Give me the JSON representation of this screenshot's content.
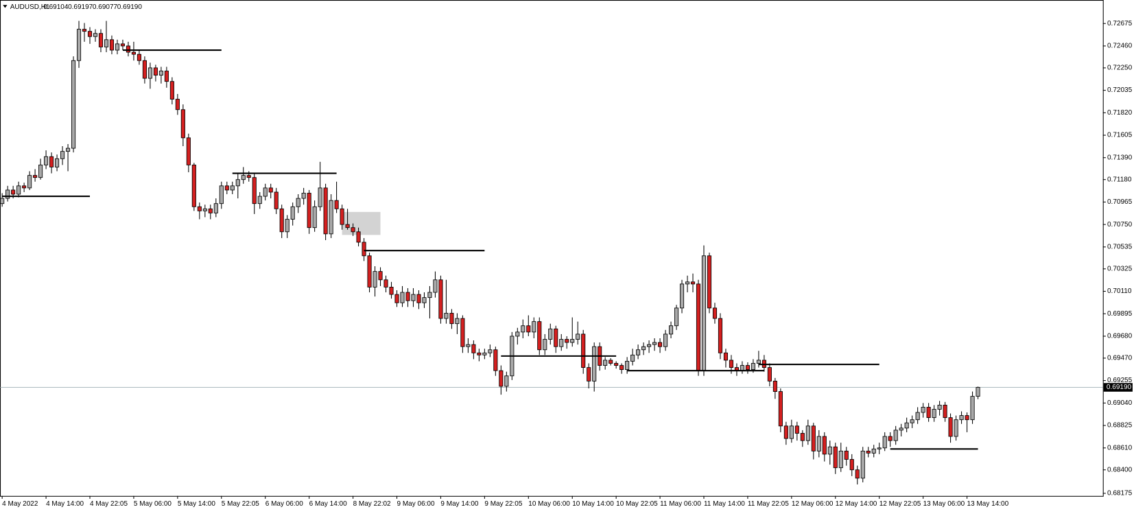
{
  "chart_data": {
    "type": "candlestick",
    "symbol": "AUDUSD,H1",
    "last_bar_labels": [
      "0.69104",
      "0.69197",
      "0.69077",
      "0.69190"
    ],
    "current_price": {
      "value": 0.6919,
      "label": "0.69190"
    },
    "up_color": "#a9a9a9",
    "down_color": "#d42020",
    "ylim": [
      0.6815,
      0.729
    ],
    "yticks": [
      0.72675,
      {
        "value": 0.7246,
        "label": "0.72460"
      },
      {
        "value": 0.7225,
        "label": "0.72250"
      },
      0.72035,
      {
        "value": 0.7182,
        "label": "0.71820"
      },
      0.71605,
      {
        "value": 0.7139,
        "label": "0.71390"
      },
      {
        "value": 0.7118,
        "label": "0.71180"
      },
      0.70965,
      {
        "value": 0.7075,
        "label": "0.70750"
      },
      0.70535,
      0.70325,
      {
        "value": 0.7011,
        "label": "0.70110"
      },
      0.69895,
      {
        "value": 0.6968,
        "label": "0.69680"
      },
      {
        "value": 0.6947,
        "label": "0.69470"
      },
      0.69255,
      {
        "value": 0.6904,
        "label": "0.69040"
      },
      0.68825,
      {
        "value": 0.6861,
        "label": "0.68610"
      },
      {
        "value": 0.684,
        "label": "0.68400"
      },
      0.68175
    ],
    "categories": [
      "4 May 2022",
      null,
      null,
      null,
      null,
      null,
      null,
      null,
      "4 May 14:00",
      null,
      null,
      null,
      null,
      null,
      null,
      null,
      "4 May 22:05",
      null,
      null,
      null,
      null,
      null,
      null,
      null,
      "5 May 06:00",
      null,
      null,
      null,
      null,
      null,
      null,
      null,
      "5 May 14:00",
      null,
      null,
      null,
      null,
      null,
      null,
      null,
      "5 May 22:05",
      null,
      null,
      null,
      null,
      null,
      null,
      null,
      "6 May 06:00",
      null,
      null,
      null,
      null,
      null,
      null,
      null,
      "6 May 14:00",
      null,
      null,
      null,
      null,
      null,
      null,
      null,
      "8 May 22:02",
      null,
      null,
      null,
      null,
      null,
      null,
      null,
      "9 May 06:00",
      null,
      null,
      null,
      null,
      null,
      null,
      null,
      "9 May 14:00",
      null,
      null,
      null,
      null,
      null,
      null,
      null,
      "9 May 22:05",
      null,
      null,
      null,
      null,
      null,
      null,
      null,
      "10 May 06:00",
      null,
      null,
      null,
      null,
      null,
      null,
      null,
      "10 May 14:00",
      null,
      null,
      null,
      null,
      null,
      null,
      null,
      "10 May 22:05",
      null,
      null,
      null,
      null,
      null,
      null,
      null,
      "11 May 06:00",
      null,
      null,
      null,
      null,
      null,
      null,
      null,
      "11 May 14:00",
      null,
      null,
      null,
      null,
      null,
      null,
      null,
      "11 May 22:05",
      null,
      null,
      null,
      null,
      null,
      null,
      null,
      "12 May 06:00",
      null,
      null,
      null,
      null,
      null,
      null,
      null,
      "12 May 14:00",
      null,
      null,
      null,
      null,
      null,
      null,
      null,
      "12 May 22:05",
      null,
      null,
      null,
      null,
      null,
      null,
      null,
      "13 May 06:00",
      null,
      null,
      null,
      null,
      null,
      null,
      null,
      "13 May 14:00",
      null,
      null
    ],
    "ohlc": [
      [
        0.7095,
        0.7105,
        0.7092,
        0.71
      ],
      [
        0.71,
        0.7112,
        0.7097,
        0.7108
      ],
      [
        0.7108,
        0.7112,
        0.71,
        0.7104
      ],
      [
        0.7104,
        0.7116,
        0.7101,
        0.7112
      ],
      [
        0.7112,
        0.7115,
        0.7106,
        0.711
      ],
      [
        0.711,
        0.7126,
        0.7108,
        0.7122
      ],
      [
        0.7122,
        0.7128,
        0.7116,
        0.712
      ],
      [
        0.712,
        0.7138,
        0.7118,
        0.7132
      ],
      [
        0.7132,
        0.7146,
        0.7128,
        0.714
      ],
      [
        0.714,
        0.7144,
        0.7124,
        0.713
      ],
      [
        0.713,
        0.7142,
        0.7126,
        0.7138
      ],
      [
        0.7138,
        0.715,
        0.7132,
        0.7145
      ],
      [
        0.7145,
        0.7152,
        0.7126,
        0.7148
      ],
      [
        0.7148,
        0.7236,
        0.7144,
        0.7232
      ],
      [
        0.7232,
        0.727,
        0.7225,
        0.7262
      ],
      [
        0.7262,
        0.7268,
        0.725,
        0.726
      ],
      [
        0.726,
        0.7264,
        0.7248,
        0.7255
      ],
      [
        0.7255,
        0.7262,
        0.725,
        0.7258
      ],
      [
        0.7258,
        0.7262,
        0.724,
        0.7245
      ],
      [
        0.7245,
        0.727,
        0.724,
        0.7252
      ],
      [
        0.7252,
        0.7256,
        0.7238,
        0.7242
      ],
      [
        0.7242,
        0.7252,
        0.7238,
        0.7248
      ],
      [
        0.7248,
        0.7252,
        0.7242,
        0.7246
      ],
      [
        0.7246,
        0.725,
        0.7236,
        0.724
      ],
      [
        0.724,
        0.725,
        0.7232,
        0.7238
      ],
      [
        0.7238,
        0.7242,
        0.7228,
        0.7232
      ],
      [
        0.7232,
        0.7236,
        0.721,
        0.7215
      ],
      [
        0.7215,
        0.723,
        0.7205,
        0.7225
      ],
      [
        0.7225,
        0.7228,
        0.7212,
        0.7218
      ],
      [
        0.7218,
        0.7226,
        0.721,
        0.7222
      ],
      [
        0.7222,
        0.7226,
        0.7206,
        0.7212
      ],
      [
        0.7212,
        0.7216,
        0.719,
        0.7195
      ],
      [
        0.7195,
        0.72,
        0.718,
        0.7185
      ],
      [
        0.7185,
        0.719,
        0.715,
        0.7158
      ],
      [
        0.7158,
        0.7162,
        0.7125,
        0.7132
      ],
      [
        0.7132,
        0.7134,
        0.7088,
        0.7092
      ],
      [
        0.7092,
        0.7096,
        0.708,
        0.7088
      ],
      [
        0.7088,
        0.7094,
        0.7082,
        0.709
      ],
      [
        0.709,
        0.7094,
        0.708,
        0.7086
      ],
      [
        0.7086,
        0.71,
        0.7082,
        0.7095
      ],
      [
        0.7095,
        0.7116,
        0.709,
        0.7112
      ],
      [
        0.7112,
        0.7116,
        0.7104,
        0.7108
      ],
      [
        0.7108,
        0.7116,
        0.7104,
        0.7112
      ],
      [
        0.7112,
        0.7124,
        0.71,
        0.7118
      ],
      [
        0.7118,
        0.713,
        0.7114,
        0.7122
      ],
      [
        0.7122,
        0.7126,
        0.7116,
        0.712
      ],
      [
        0.712,
        0.7124,
        0.7085,
        0.7095
      ],
      [
        0.7095,
        0.7106,
        0.709,
        0.7102
      ],
      [
        0.7102,
        0.7114,
        0.7098,
        0.711
      ],
      [
        0.711,
        0.7114,
        0.71,
        0.7106
      ],
      [
        0.7106,
        0.711,
        0.7085,
        0.709
      ],
      [
        0.709,
        0.7094,
        0.7062,
        0.7068
      ],
      [
        0.7068,
        0.7084,
        0.7062,
        0.708
      ],
      [
        0.708,
        0.7096,
        0.7074,
        0.7092
      ],
      [
        0.7092,
        0.7104,
        0.7086,
        0.71
      ],
      [
        0.71,
        0.711,
        0.7094,
        0.7105
      ],
      [
        0.7105,
        0.7108,
        0.7066,
        0.7072
      ],
      [
        0.7072,
        0.7098,
        0.7068,
        0.7092
      ],
      [
        0.7092,
        0.7135,
        0.7088,
        0.711
      ],
      [
        0.711,
        0.7114,
        0.706,
        0.7066
      ],
      [
        0.7066,
        0.7104,
        0.7062,
        0.7098
      ],
      [
        0.7098,
        0.7116,
        0.7086,
        0.709
      ],
      [
        0.709,
        0.7094,
        0.707,
        0.7075
      ],
      [
        0.7075,
        0.709,
        0.707,
        0.7072
      ],
      [
        0.7072,
        0.7076,
        0.7064,
        0.7068
      ],
      [
        0.7068,
        0.7072,
        0.7054,
        0.7058
      ],
      [
        0.7058,
        0.7062,
        0.704,
        0.7045
      ],
      [
        0.7045,
        0.7048,
        0.701,
        0.7015
      ],
      [
        0.7015,
        0.7035,
        0.7006,
        0.703
      ],
      [
        0.703,
        0.7034,
        0.7016,
        0.7022
      ],
      [
        0.7022,
        0.7026,
        0.701,
        0.7015
      ],
      [
        0.7015,
        0.702,
        0.7004,
        0.7008
      ],
      [
        0.7008,
        0.7012,
        0.6996,
        0.7
      ],
      [
        0.7,
        0.7016,
        0.6996,
        0.701
      ],
      [
        0.701,
        0.7014,
        0.6996,
        0.7002
      ],
      [
        0.7002,
        0.7014,
        0.6996,
        0.7008
      ],
      [
        0.7008,
        0.7012,
        0.6994,
        0.7
      ],
      [
        0.7,
        0.701,
        0.6995,
        0.7005
      ],
      [
        0.7005,
        0.7016,
        0.6985,
        0.701
      ],
      [
        0.701,
        0.703,
        0.7005,
        0.7022
      ],
      [
        0.7022,
        0.7026,
        0.698,
        0.6985
      ],
      [
        0.6985,
        0.7022,
        0.698,
        0.699
      ],
      [
        0.699,
        0.6994,
        0.6975,
        0.698
      ],
      [
        0.698,
        0.699,
        0.697,
        0.6985
      ],
      [
        0.6985,
        0.6988,
        0.6952,
        0.6958
      ],
      [
        0.6958,
        0.6966,
        0.6952,
        0.696
      ],
      [
        0.696,
        0.6964,
        0.6946,
        0.6952
      ],
      [
        0.6952,
        0.6956,
        0.6944,
        0.695
      ],
      [
        0.695,
        0.6956,
        0.6946,
        0.6952
      ],
      [
        0.6952,
        0.696,
        0.6948,
        0.6955
      ],
      [
        0.6955,
        0.6958,
        0.693,
        0.6935
      ],
      [
        0.6935,
        0.694,
        0.6912,
        0.692
      ],
      [
        0.692,
        0.6934,
        0.6915,
        0.693
      ],
      [
        0.693,
        0.6972,
        0.6926,
        0.6968
      ],
      [
        0.6968,
        0.6976,
        0.696,
        0.6972
      ],
      [
        0.6972,
        0.6984,
        0.6966,
        0.6978
      ],
      [
        0.6978,
        0.6988,
        0.6968,
        0.6972
      ],
      [
        0.6972,
        0.6986,
        0.6966,
        0.6982
      ],
      [
        0.6982,
        0.6986,
        0.695,
        0.6955
      ],
      [
        0.6955,
        0.697,
        0.695,
        0.6965
      ],
      [
        0.6965,
        0.698,
        0.696,
        0.6975
      ],
      [
        0.6975,
        0.6978,
        0.6952,
        0.6958
      ],
      [
        0.6958,
        0.697,
        0.6954,
        0.6965
      ],
      [
        0.6965,
        0.6968,
        0.6956,
        0.6962
      ],
      [
        0.6962,
        0.6986,
        0.6958,
        0.6965
      ],
      [
        0.6965,
        0.6982,
        0.696,
        0.697
      ],
      [
        0.697,
        0.6974,
        0.6932,
        0.6938
      ],
      [
        0.6938,
        0.6942,
        0.6918,
        0.6925
      ],
      [
        0.6925,
        0.6962,
        0.6915,
        0.6958
      ],
      [
        0.6958,
        0.6962,
        0.6935,
        0.694
      ],
      [
        0.694,
        0.6948,
        0.6936,
        0.6945
      ],
      [
        0.6945,
        0.6947,
        0.694,
        0.6942
      ],
      [
        0.6942,
        0.6944,
        0.6937,
        0.694
      ],
      [
        0.694,
        0.6942,
        0.6932,
        0.6936
      ],
      [
        0.6936,
        0.6948,
        0.6932,
        0.6944
      ],
      [
        0.6944,
        0.6956,
        0.694,
        0.695
      ],
      [
        0.695,
        0.696,
        0.6946,
        0.6955
      ],
      [
        0.6955,
        0.6962,
        0.695,
        0.6958
      ],
      [
        0.6958,
        0.6964,
        0.6952,
        0.696
      ],
      [
        0.696,
        0.6966,
        0.6954,
        0.6962
      ],
      [
        0.6962,
        0.6966,
        0.6952,
        0.6958
      ],
      [
        0.6958,
        0.6974,
        0.6954,
        0.697
      ],
      [
        0.697,
        0.6982,
        0.6966,
        0.6978
      ],
      [
        0.6978,
        0.6998,
        0.6974,
        0.6995
      ],
      [
        0.6995,
        0.7022,
        0.699,
        0.7018
      ],
      [
        0.7018,
        0.7026,
        0.701,
        0.702
      ],
      [
        0.702,
        0.7028,
        0.701,
        0.7018
      ],
      [
        0.7018,
        0.7022,
        0.693,
        0.6935
      ],
      [
        0.6935,
        0.7055,
        0.693,
        0.7045
      ],
      [
        0.7045,
        0.7048,
        0.699,
        0.6995
      ],
      [
        0.6995,
        0.7,
        0.698,
        0.6985
      ],
      [
        0.6985,
        0.699,
        0.6946,
        0.6952
      ],
      [
        0.6952,
        0.6956,
        0.6938,
        0.6945
      ],
      [
        0.6945,
        0.695,
        0.6932,
        0.6938
      ],
      [
        0.6938,
        0.6942,
        0.693,
        0.6935
      ],
      [
        0.6935,
        0.6944,
        0.6932,
        0.694
      ],
      [
        0.694,
        0.6943,
        0.6932,
        0.6936
      ],
      [
        0.6936,
        0.6946,
        0.6933,
        0.6942
      ],
      [
        0.6942,
        0.6954,
        0.6938,
        0.6945
      ],
      [
        0.6945,
        0.695,
        0.6934,
        0.6938
      ],
      [
        0.6938,
        0.6942,
        0.692,
        0.6925
      ],
      [
        0.6925,
        0.6928,
        0.6908,
        0.6915
      ],
      [
        0.6915,
        0.6918,
        0.6876,
        0.6882
      ],
      [
        0.6882,
        0.6886,
        0.6864,
        0.687
      ],
      [
        0.687,
        0.6888,
        0.6866,
        0.6882
      ],
      [
        0.6882,
        0.6886,
        0.6868,
        0.6875
      ],
      [
        0.6875,
        0.6878,
        0.6862,
        0.6868
      ],
      [
        0.6868,
        0.6888,
        0.6864,
        0.6882
      ],
      [
        0.6882,
        0.6885,
        0.685,
        0.6858
      ],
      [
        0.6858,
        0.6878,
        0.6852,
        0.6872
      ],
      [
        0.6872,
        0.6876,
        0.6848,
        0.6855
      ],
      [
        0.6855,
        0.6868,
        0.6845,
        0.6862
      ],
      [
        0.6862,
        0.6866,
        0.6836,
        0.6842
      ],
      [
        0.6842,
        0.6866,
        0.6838,
        0.6858
      ],
      [
        0.6858,
        0.6862,
        0.6844,
        0.685
      ],
      [
        0.685,
        0.6855,
        0.6834,
        0.684
      ],
      [
        0.684,
        0.6844,
        0.6826,
        0.6832
      ],
      [
        0.6832,
        0.6862,
        0.6828,
        0.6858
      ],
      [
        0.6858,
        0.6862,
        0.6852,
        0.6856
      ],
      [
        0.6856,
        0.6864,
        0.6852,
        0.686
      ],
      [
        0.686,
        0.6866,
        0.6855,
        0.6861
      ],
      [
        0.6861,
        0.6876,
        0.6858,
        0.6872
      ],
      [
        0.6872,
        0.6876,
        0.6862,
        0.6868
      ],
      [
        0.6868,
        0.6882,
        0.6864,
        0.6878
      ],
      [
        0.6878,
        0.6884,
        0.6872,
        0.688
      ],
      [
        0.688,
        0.689,
        0.6876,
        0.6885
      ],
      [
        0.6885,
        0.6892,
        0.688,
        0.6888
      ],
      [
        0.6888,
        0.69,
        0.6884,
        0.6895
      ],
      [
        0.6895,
        0.6904,
        0.689,
        0.69
      ],
      [
        0.69,
        0.6904,
        0.6886,
        0.689
      ],
      [
        0.689,
        0.6902,
        0.6886,
        0.6898
      ],
      [
        0.6898,
        0.6906,
        0.6892,
        0.6902
      ],
      [
        0.6902,
        0.6905,
        0.6886,
        0.689
      ],
      [
        0.689,
        0.6894,
        0.6866,
        0.6872
      ],
      [
        0.6872,
        0.6892,
        0.6868,
        0.6888
      ],
      [
        0.6888,
        0.6896,
        0.6884,
        0.6892
      ],
      [
        0.6892,
        0.6895,
        0.6876,
        0.6888
      ],
      [
        0.6888,
        0.6915,
        0.6884,
        0.69104
      ],
      [
        0.69104,
        0.69197,
        0.69077,
        0.6919
      ]
    ],
    "levels": [
      {
        "price": 0.7102,
        "start": 0,
        "end": 16
      },
      {
        "price": 0.7242,
        "start": 22,
        "end": 40
      },
      {
        "price": 0.7124,
        "start": 42,
        "end": 61
      },
      {
        "price": 0.705,
        "start": 66,
        "end": 88
      },
      {
        "price": 0.6949,
        "start": 91,
        "end": 112
      },
      {
        "price": 0.6935,
        "start": 114,
        "end": 139
      },
      {
        "price": 0.6941,
        "start": 138,
        "end": 160
      },
      {
        "price": 0.686,
        "start": 162,
        "end": 178
      }
    ],
    "zone": {
      "top": 0.7087,
      "bottom": 0.7065,
      "start": 62,
      "end": 69
    }
  }
}
